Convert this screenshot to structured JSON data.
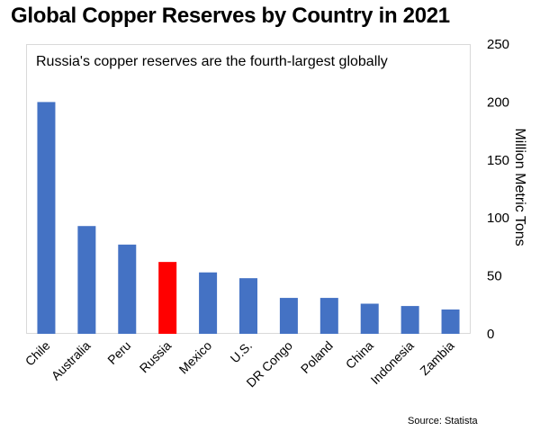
{
  "chart_data": {
    "type": "bar",
    "title": "Global Copper Reserves by Country in 2021",
    "subtitle": "Russia's copper reserves are the fourth-largest globally",
    "xlabel": "",
    "ylabel": "Million Metric Tons",
    "categories": [
      "Chile",
      "Australia",
      "Peru",
      "Russia",
      "Mexico",
      "U.S.",
      "DR Congo",
      "Poland",
      "China",
      "Indonesia",
      "Zambia"
    ],
    "values": [
      200,
      93,
      77,
      62,
      53,
      48,
      31,
      31,
      26,
      24,
      21
    ],
    "ylim": [
      0,
      250
    ],
    "yticks": [
      "0",
      "50",
      "100",
      "150",
      "200",
      "250"
    ],
    "grid": false,
    "colors": {
      "default_bar": "#4472c4",
      "highlight_bar": "#ff0000",
      "highlight_category": "Russia"
    },
    "source": "Source: Statista"
  }
}
